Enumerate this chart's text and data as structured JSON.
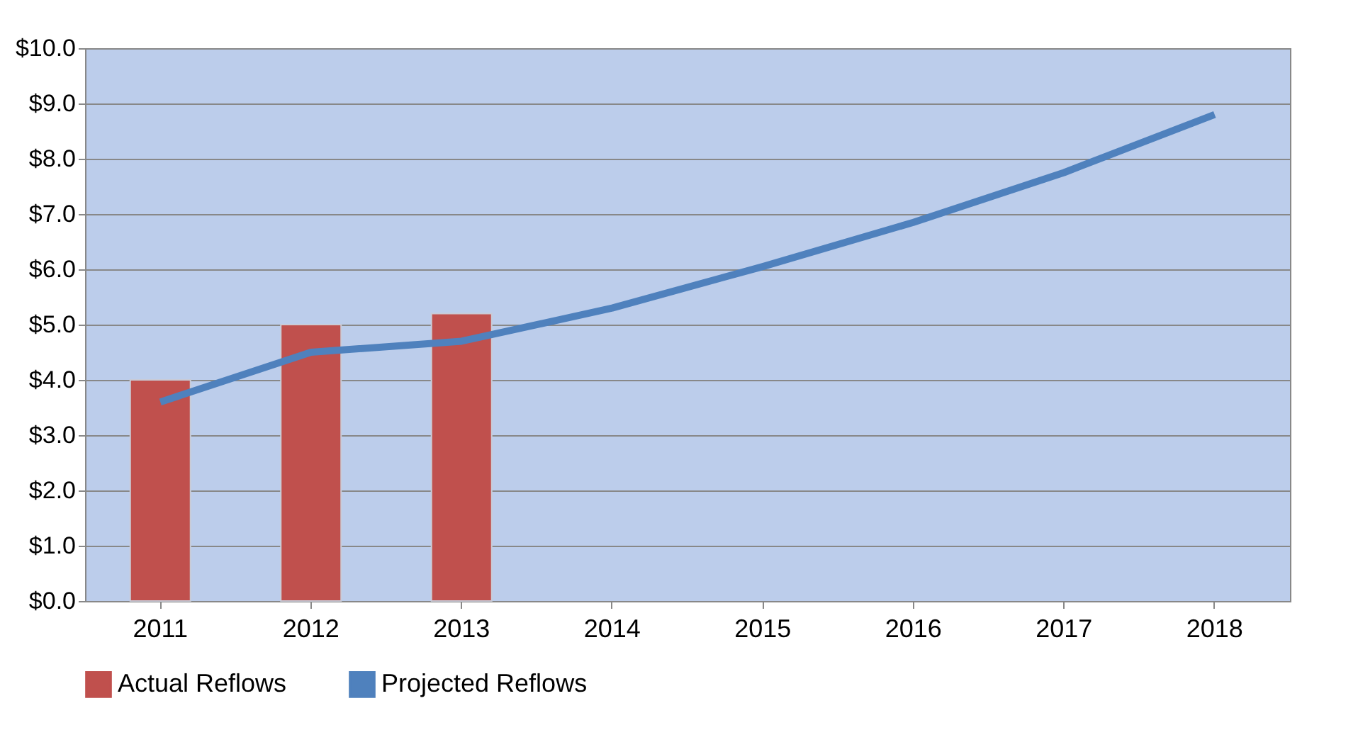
{
  "chart_data": {
    "type": "bar",
    "categories": [
      "2011",
      "2012",
      "2013",
      "2014",
      "2015",
      "2016",
      "2017",
      "2018"
    ],
    "series": [
      {
        "name": "Actual Reflows",
        "color": "#c0504d",
        "values": [
          4.0,
          5.0,
          5.2,
          null,
          null,
          null,
          null,
          null
        ]
      },
      {
        "name": "Projected Reflows",
        "type": "line",
        "color": "#4f81bd",
        "values": [
          3.6,
          4.5,
          4.7,
          5.3,
          6.05,
          6.85,
          7.75,
          8.8
        ]
      }
    ],
    "ylim": [
      0,
      10
    ],
    "yticks": [
      {
        "value": 0,
        "label": "$0.0"
      },
      {
        "value": 1,
        "label": "$1.0"
      },
      {
        "value": 2,
        "label": "$2.0"
      },
      {
        "value": 3,
        "label": "$3.0"
      },
      {
        "value": 4,
        "label": "$4.0"
      },
      {
        "value": 5,
        "label": "$5.0"
      },
      {
        "value": 6,
        "label": "$6.0"
      },
      {
        "value": 7,
        "label": "$7.0"
      },
      {
        "value": 8,
        "label": "$8.0"
      },
      {
        "value": 9,
        "label": "$9.0"
      },
      {
        "value": 10,
        "label": "$10.0"
      }
    ],
    "grid": "y",
    "legend": "bottom",
    "line_style": "solid",
    "marker": "none"
  }
}
